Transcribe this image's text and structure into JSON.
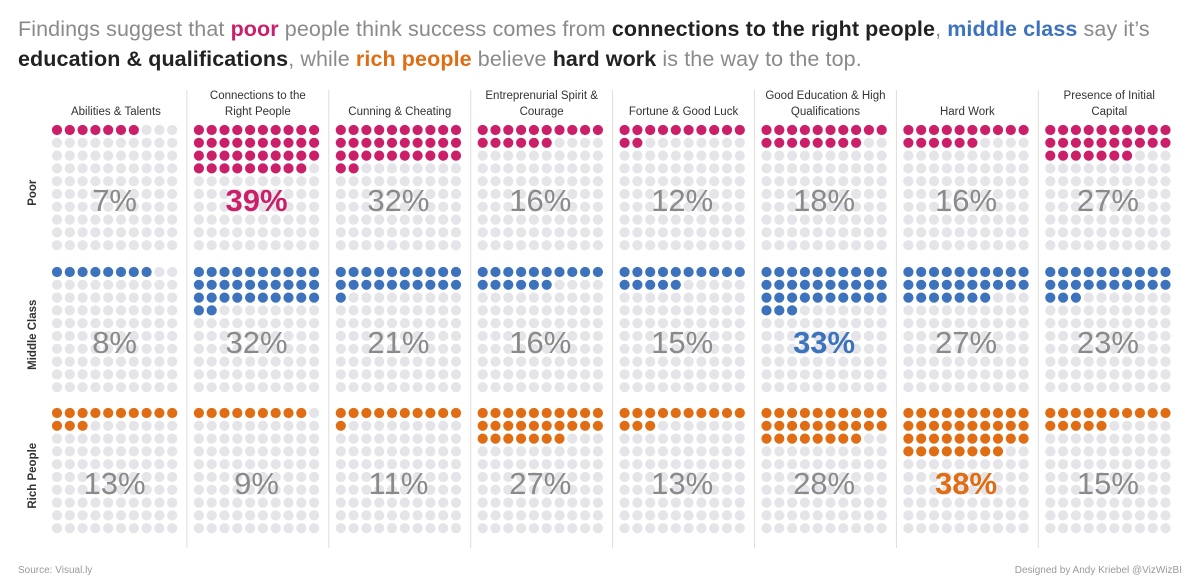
{
  "title": {
    "p1": "Findings suggest that ",
    "poor": "poor",
    "p2": " people think success comes from ",
    "connections": "connections to the right people",
    "p3": ", ",
    "middle": "middle class",
    "p4": " say it’s ",
    "education": "education & qualifications",
    "p5": ", while ",
    "rich": "rich people",
    "p6": " believe ",
    "hardwork": "hard work",
    "p7": " is the way to the top."
  },
  "colors": {
    "poor": "#cc1f6a",
    "middle": "#3d72bd",
    "rich": "#e06d14",
    "empty": "#e4e4e9",
    "label": "#8a8a8a",
    "divider": "#dddddd"
  },
  "chart_data": {
    "type": "waffle",
    "title": "Findings suggest that poor people think success comes from connections to the right people, middle class say it’s education & qualifications, while rich people believe hard work is the way to the top.",
    "unit": "%",
    "grid_size": 100,
    "categories": [
      [
        "Abilities & Talents"
      ],
      [
        "Connections to the",
        "Right People"
      ],
      [
        "Cunning & Cheating"
      ],
      [
        "Entreprenurial Spirit &",
        "Courage"
      ],
      [
        "Fortune & Good Luck"
      ],
      [
        "Good Education & High",
        "Qualifications"
      ],
      [
        "Hard Work"
      ],
      [
        "Presence of Initial",
        "Capital"
      ]
    ],
    "series": [
      {
        "name": "Poor",
        "color": "#cc1f6a",
        "values": [
          7,
          39,
          32,
          16,
          12,
          18,
          16,
          27
        ],
        "highlight_index": 1
      },
      {
        "name": "Middle Class",
        "color": "#3d72bd",
        "values": [
          8,
          32,
          21,
          16,
          15,
          33,
          27,
          23
        ],
        "highlight_index": 5
      },
      {
        "name": "Rich People",
        "color": "#e06d14",
        "values": [
          13,
          9,
          11,
          27,
          13,
          28,
          38,
          15
        ],
        "highlight_index": 6
      }
    ]
  },
  "footer": {
    "source": "Source: Visual.ly",
    "credit": "Designed by Andy Kriebel @VizWizBI"
  }
}
